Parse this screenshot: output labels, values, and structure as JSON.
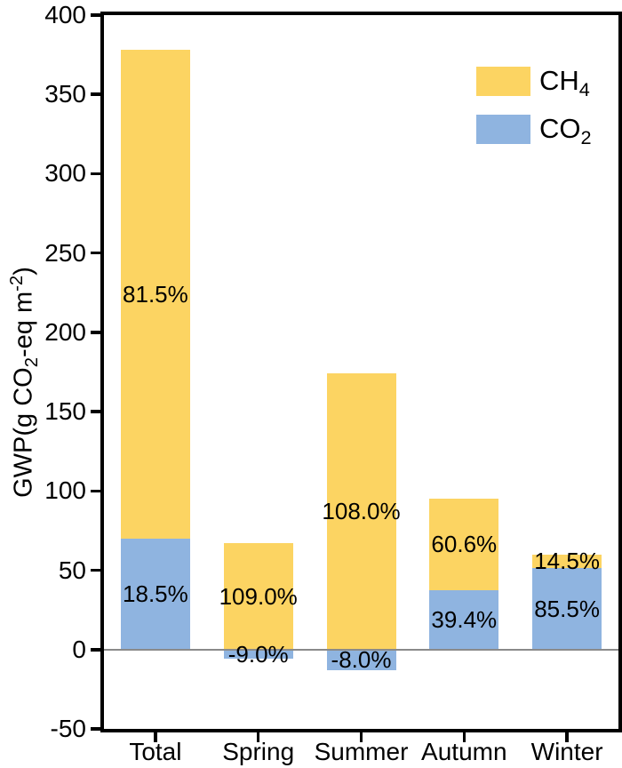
{
  "figure": {
    "background_color": "#ffffff",
    "axis_color": "#000000",
    "zero_line_color": "#8a8a8a",
    "text_color": "#000000"
  },
  "chart_data": {
    "type": "bar",
    "stacked": true,
    "title": "",
    "xlabel": "",
    "ylabel": "GWP(g CO2-eq m-2)",
    "ylabel_parts": {
      "p1": "GWP(g CO",
      "sub1": "2",
      "p2": "-eq m",
      "sup1": "-2",
      "p3": ")"
    },
    "categories": [
      "Total",
      "Spring",
      "Summer",
      "Autumn",
      "Winter"
    ],
    "series": [
      {
        "name": "CH4",
        "color": "#FCD462",
        "values": [
          308.4,
          67.2,
          174.1,
          57.8,
          8.7
        ],
        "segment_labels": [
          "81.5%",
          "109.0%",
          "108.0%",
          "60.6%",
          "14.5%"
        ]
      },
      {
        "name": "CO2",
        "color": "#8FB4E0",
        "values": [
          70.0,
          -5.5,
          -12.9,
          37.5,
          51.3
        ],
        "segment_labels": [
          "18.5%",
          "-9.0%",
          "-8.0%",
          "39.4%",
          "85.5%"
        ]
      }
    ],
    "stack_order": [
      1,
      0
    ],
    "net_totals": [
      378.4,
      61.7,
      161.2,
      95.3,
      60.0
    ],
    "ylim": [
      -50,
      400
    ],
    "yticks": [
      400,
      350,
      300,
      250,
      200,
      150,
      100,
      50,
      0,
      -50
    ],
    "grid": false,
    "zero_line": true,
    "legend_position": "top-right-inside",
    "legend_entries": [
      {
        "text": "CH",
        "sub": "4"
      },
      {
        "text": "CO",
        "sub": "2"
      }
    ]
  }
}
